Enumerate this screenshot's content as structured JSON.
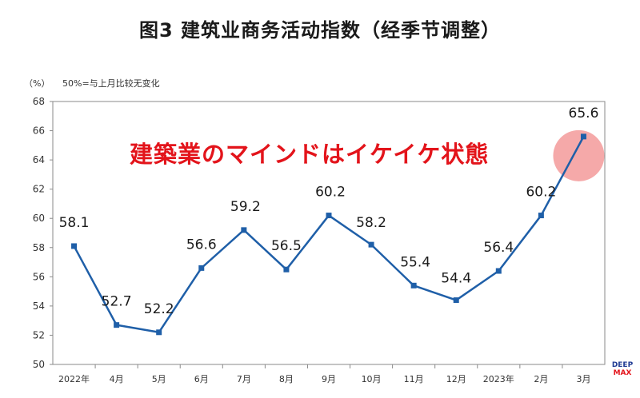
{
  "title": "图3  建筑业商务活动指数（经季节调整）",
  "unit_label": "（%）",
  "note": "50%=与上月比较无变化",
  "annotation": "建築業のマインドはイケイケ状態",
  "logo": {
    "line1": "DEEP",
    "line2": "MAX"
  },
  "colors": {
    "line": "#1f5fa8",
    "marker": "#1f5fa8",
    "highlight": "#f39a9a",
    "annotation": "#e3141b"
  },
  "chart_data": {
    "type": "line",
    "title": "图3  建筑业商务活动指数（经季节调整）",
    "ylabel": "（%）",
    "xlabel": "",
    "categories": [
      "2022年",
      "4月",
      "5月",
      "6月",
      "7月",
      "8月",
      "9月",
      "10月",
      "11月",
      "12月",
      "2023年",
      "2月",
      "3月"
    ],
    "series": [
      {
        "values": [
          58.1,
          52.7,
          52.2,
          56.6,
          59.2,
          56.5,
          60.2,
          58.2,
          55.4,
          54.4,
          56.4,
          60.2,
          65.6
        ]
      }
    ],
    "data_labels": [
      "58.1",
      "52.7",
      "52.2",
      "56.6",
      "59.2",
      "56.5",
      "60.2",
      "58.2",
      "55.4",
      "54.4",
      "56.4",
      "60.2",
      "65.6"
    ],
    "yticks": [
      50,
      52,
      54,
      56,
      58,
      60,
      62,
      64,
      66,
      68
    ],
    "ylim": [
      50,
      68
    ],
    "grid": false,
    "legend": "none"
  }
}
